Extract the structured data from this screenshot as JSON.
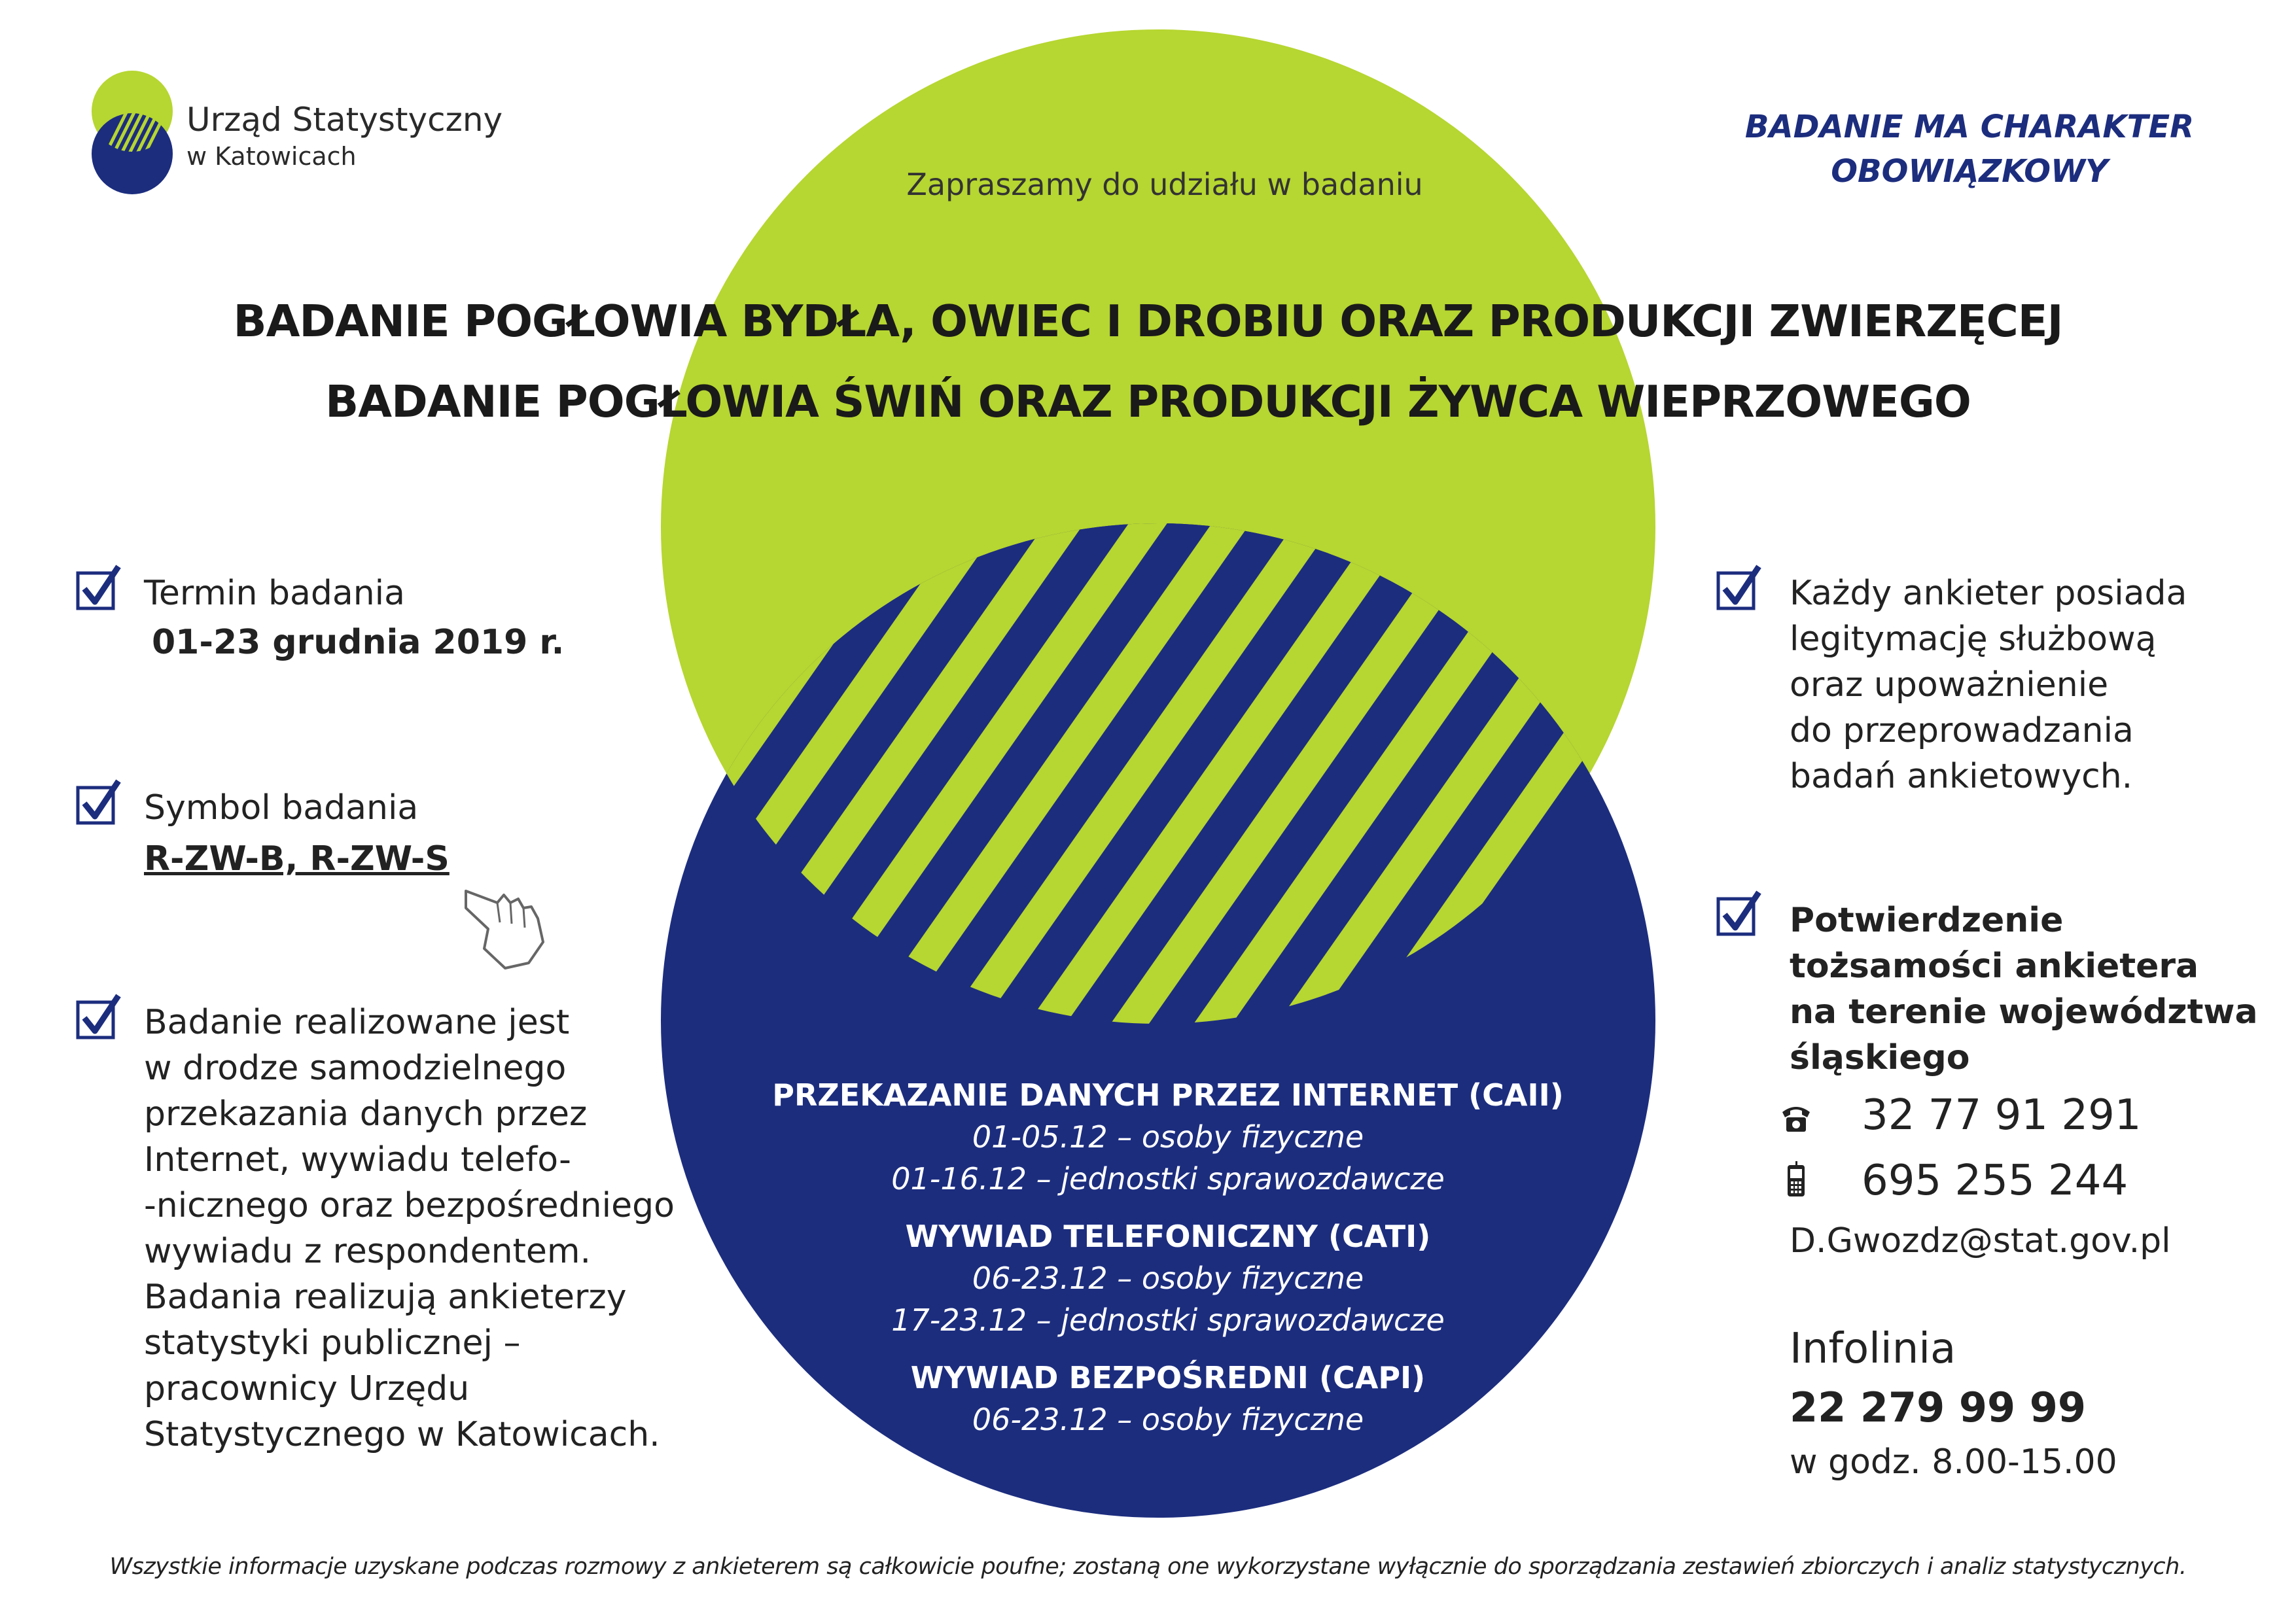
{
  "logo": {
    "name_line1": "Urząd Statystyczny",
    "name_line2": "w Katowicach"
  },
  "obligatory": {
    "line1": "BADANIE MA CHARAKTER",
    "line2": "OBOWIĄZKOWY"
  },
  "invitation": "Zapraszamy do udziału w badaniu",
  "titles": [
    "BADANIE POGŁOWIA BYDŁA, OWIEC I DROBIU ORAZ PRODUKCJI ZWIERZĘCEJ",
    "BADANIE POGŁOWIA ŚWIŃ ORAZ PRODUKCJI ŻYWCA WIEPRZOWEGO"
  ],
  "left": {
    "term_label": "Termin badania",
    "term_value": "01-23 grudnia 2019 r.",
    "symbol_label": "Symbol badania",
    "symbol_value": "R-ZW-B, R-ZW-S",
    "method_lines": [
      "Badanie realizowane jest",
      "w drodze samodzielnego",
      "przekazania danych przez",
      "Internet, wywiadu telefo-",
      "-nicznego oraz bezpośredniego",
      "wywiadu z respondentem.",
      "Badania realizują ankieterzy",
      "statystyki publicznej –",
      "pracownicy Urzędu",
      "Statystycznego w Katowicach."
    ]
  },
  "center": {
    "caii_header": "PRZEKAZANIE DANYCH PRZEZ INTERNET (CAII)",
    "caii_1": "01-05.12 – osoby fizyczne",
    "caii_2": "01-16.12 – jednostki sprawozdawcze",
    "cati_header": "WYWIAD TELEFONICZNY (CATI)",
    "cati_1": "06-23.12 – osoby fizyczne",
    "cati_2": "17-23.12 – jednostki sprawozdawcze",
    "capi_header": "WYWIAD BEZPOŚREDNI (CAPI)",
    "capi_1": "06-23.12 – osoby fizyczne"
  },
  "right": {
    "interviewer_lines": [
      "Każdy ankieter posiada",
      "legitymację służbową",
      "oraz upoważnienie",
      "do przeprowadzania",
      "badań ankietowych."
    ],
    "confirm_lines": [
      "Potwierdzenie",
      "tożsamości ankietera",
      "na terenie województwa",
      "śląskiego"
    ],
    "phone": "32 77 91 291",
    "mobile": "695 255 244",
    "email": "D.Gwozdz@stat.gov.pl",
    "infoline_label": "Infolinia",
    "infoline_number": "22 279 99 99",
    "infoline_hours": "w godz. 8.00-15.00"
  },
  "footer": "Wszystkie informacje uzyskane podczas rozmowy z ankieterem są całkowicie poufne; zostaną one wykorzystane wyłącznie do sporządzania zestawień zbiorczych i analiz statystycznych.",
  "colors": {
    "green": "#b6d631",
    "navy": "#1c2d7e",
    "text": "#222222"
  },
  "icons": [
    "check-icon",
    "pointing-hand-icon",
    "telephone-icon",
    "mobile-phone-icon"
  ]
}
